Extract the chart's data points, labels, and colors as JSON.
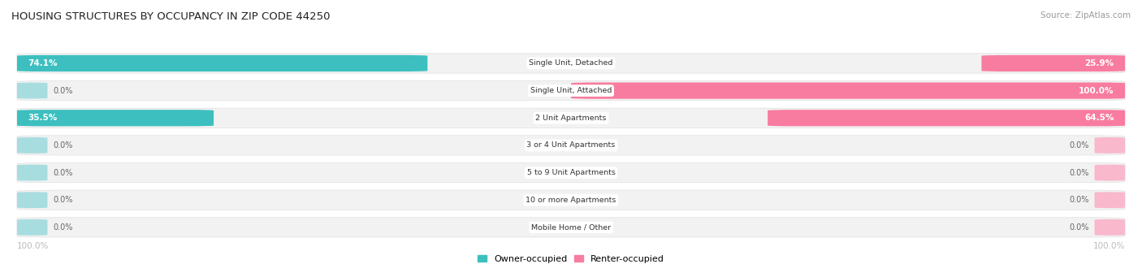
{
  "title": "HOUSING STRUCTURES BY OCCUPANCY IN ZIP CODE 44250",
  "source": "Source: ZipAtlas.com",
  "categories": [
    "Single Unit, Detached",
    "Single Unit, Attached",
    "2 Unit Apartments",
    "3 or 4 Unit Apartments",
    "5 to 9 Unit Apartments",
    "10 or more Apartments",
    "Mobile Home / Other"
  ],
  "owner_pct": [
    74.1,
    0.0,
    35.5,
    0.0,
    0.0,
    0.0,
    0.0
  ],
  "renter_pct": [
    25.9,
    100.0,
    64.5,
    0.0,
    0.0,
    0.0,
    0.0
  ],
  "owner_color": "#3dbfbf",
  "renter_color": "#f87ca0",
  "owner_color_light": "#a8dde0",
  "renter_color_light": "#f9b8cc",
  "row_bg_color": "#f2f2f2",
  "row_bg_border": "#e0e0e0",
  "label_color": "#666666",
  "title_color": "#222222",
  "source_color": "#999999",
  "axis_label_color": "#bbbbbb",
  "figsize": [
    14.06,
    3.41
  ],
  "dpi": 100
}
